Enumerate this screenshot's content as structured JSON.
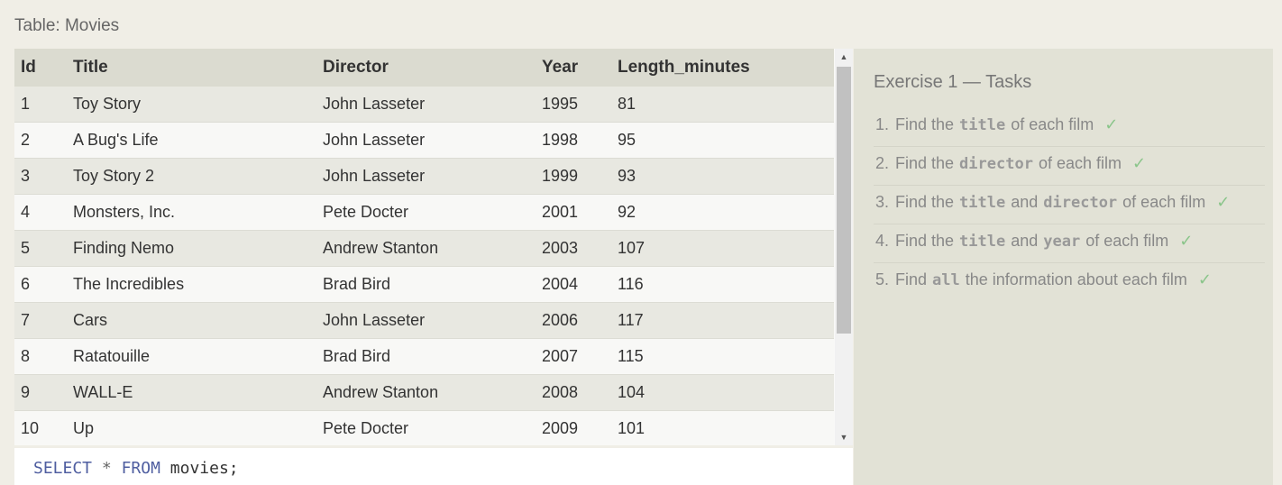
{
  "caption": "Table: Movies",
  "columns": [
    "Id",
    "Title",
    "Director",
    "Year",
    "Length_minutes"
  ],
  "rows": [
    [
      "1",
      "Toy Story",
      "John Lasseter",
      "1995",
      "81"
    ],
    [
      "2",
      "A Bug's Life",
      "John Lasseter",
      "1998",
      "95"
    ],
    [
      "3",
      "Toy Story 2",
      "John Lasseter",
      "1999",
      "93"
    ],
    [
      "4",
      "Monsters, Inc.",
      "Pete Docter",
      "2001",
      "92"
    ],
    [
      "5",
      "Finding Nemo",
      "Andrew Stanton",
      "2003",
      "107"
    ],
    [
      "6",
      "The Incredibles",
      "Brad Bird",
      "2004",
      "116"
    ],
    [
      "7",
      "Cars",
      "John Lasseter",
      "2006",
      "117"
    ],
    [
      "8",
      "Ratatouille",
      "Brad Bird",
      "2007",
      "115"
    ],
    [
      "9",
      "WALL-E",
      "Andrew Stanton",
      "2008",
      "104"
    ],
    [
      "10",
      "Up",
      "Pete Docter",
      "2009",
      "101"
    ]
  ],
  "scrollbar": {
    "up_glyph": "▲",
    "down_glyph": "▼"
  },
  "query": {
    "select_kw": "SELECT",
    "star": "*",
    "from_kw": "FROM",
    "table": "movies;"
  },
  "tasks": {
    "title": "Exercise 1 — Tasks",
    "check_glyph": "✓",
    "check_color": "#8ac58a",
    "items": [
      {
        "num": "1.",
        "parts": [
          {
            "t": "text",
            "v": "Find the"
          },
          {
            "t": "code",
            "v": "title"
          },
          {
            "t": "text",
            "v": "of each film"
          }
        ],
        "done": true
      },
      {
        "num": "2.",
        "parts": [
          {
            "t": "text",
            "v": "Find the"
          },
          {
            "t": "code",
            "v": "director"
          },
          {
            "t": "text",
            "v": "of each film"
          }
        ],
        "done": true
      },
      {
        "num": "3.",
        "parts": [
          {
            "t": "text",
            "v": "Find the"
          },
          {
            "t": "code",
            "v": "title"
          },
          {
            "t": "text",
            "v": "and"
          },
          {
            "t": "code",
            "v": "director"
          },
          {
            "t": "text",
            "v": "of each film"
          }
        ],
        "done": true
      },
      {
        "num": "4.",
        "parts": [
          {
            "t": "text",
            "v": "Find the"
          },
          {
            "t": "code",
            "v": "title"
          },
          {
            "t": "text",
            "v": "and"
          },
          {
            "t": "code",
            "v": "year"
          },
          {
            "t": "text",
            "v": "of each film"
          }
        ],
        "done": true
      },
      {
        "num": "5.",
        "parts": [
          {
            "t": "text",
            "v": "Find"
          },
          {
            "t": "code",
            "v": "all"
          },
          {
            "t": "text",
            "v": "the information about each film"
          }
        ],
        "done": true
      }
    ]
  }
}
